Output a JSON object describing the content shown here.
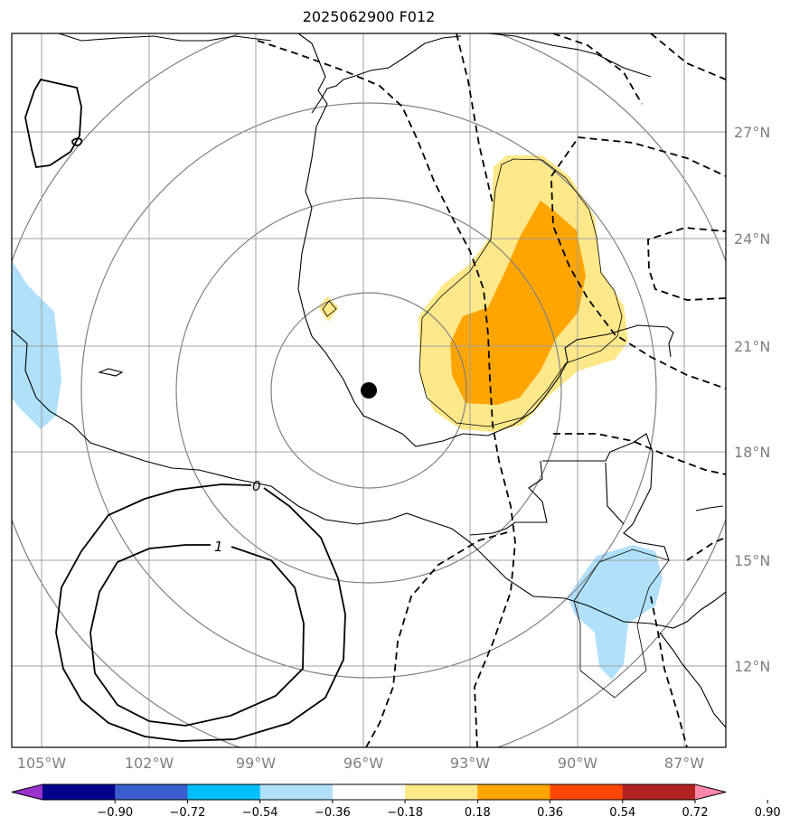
{
  "title": "2025062900 F012",
  "map": {
    "lat_ticks": [
      "27°N",
      "24°N",
      "21°N",
      "18°N",
      "15°N",
      "12°N"
    ],
    "lon_ticks": [
      "105°W",
      "102°W",
      "99°W",
      "96°W",
      "93°W",
      "90°W",
      "87°W"
    ],
    "center_marker": {
      "lat": 19.7,
      "lon": -95.9
    },
    "contour_labels": [
      "0",
      "1"
    ],
    "line_color": "#000000",
    "grid_color": "#a0a0a0",
    "ring_color": "#808080"
  },
  "colorbar": {
    "labels": [
      "−0.90",
      "−0.72",
      "−0.54",
      "−0.36",
      "−0.18",
      "0.18",
      "0.36",
      "0.54",
      "0.72",
      "0.90"
    ],
    "colors": [
      "#9932cc",
      "#00008b",
      "#3a5fcd",
      "#00bfff",
      "#b0e0fa",
      "#ffffff",
      "#ffe88a",
      "#ffa500",
      "#ff4500",
      "#b22222",
      "#ff88aa"
    ]
  }
}
